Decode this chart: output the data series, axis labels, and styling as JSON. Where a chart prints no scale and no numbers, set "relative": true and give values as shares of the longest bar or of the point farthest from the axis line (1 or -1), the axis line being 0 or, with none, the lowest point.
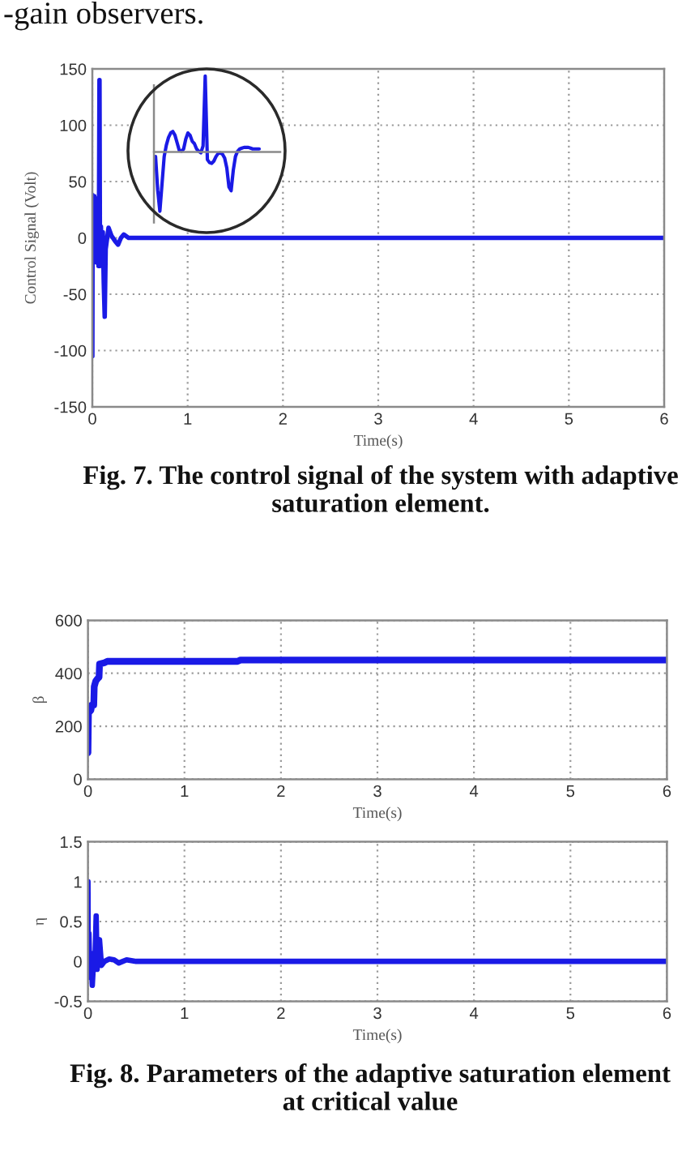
{
  "chart_data": [
    {
      "type": "line",
      "xlabel": "Time(s)",
      "ylabel": "Control Signal (Volt)",
      "annotations": [
        "-gain observers.",
        "Fig. 7. The control signal of the system with adaptive saturation element."
      ],
      "x": [
        0,
        0.003,
        0.01,
        0.015,
        0.02,
        0.025,
        0.03,
        0.035,
        0.04,
        0.045,
        0.05,
        0.055,
        0.06,
        0.065,
        0.07,
        0.075,
        0.08,
        0.09,
        0.1,
        0.11,
        0.12,
        0.13,
        0.14,
        0.17,
        0.2,
        0.24,
        0.27,
        0.3,
        0.33,
        0.38,
        0.45,
        6
      ],
      "series": [
        {
          "color": "#1a1ae6",
          "values": [
            -105,
            38,
            35,
            -10,
            37,
            -20,
            30,
            -15,
            35,
            -22,
            32,
            -20,
            30,
            -25,
            20,
            140,
            -25,
            10,
            -20,
            5,
            -40,
            -70,
            -10,
            9,
            2,
            -3,
            -6,
            0,
            3,
            0,
            0,
            0
          ]
        }
      ],
      "xlim": [
        0,
        6
      ],
      "ylim": [
        -150,
        150
      ],
      "xticks": [
        0,
        1,
        2,
        3,
        4,
        5,
        6
      ],
      "yticks": [
        -150,
        -100,
        -50,
        0,
        50,
        100,
        150
      ],
      "grid": true
    },
    {
      "type": "line",
      "relative": true,
      "categories": [
        null,
        null,
        null,
        null,
        null,
        null,
        null,
        null,
        null,
        null,
        null,
        null,
        null,
        null,
        null,
        null,
        null,
        null,
        null,
        null,
        null,
        null,
        null,
        null,
        null,
        null,
        null,
        null,
        null,
        null,
        null,
        null,
        null,
        null,
        null,
        null,
        null,
        null,
        null,
        null,
        null,
        null,
        null,
        null,
        null,
        null,
        null,
        null,
        null
      ],
      "series": [
        {
          "color": "#1a1ae6",
          "values": [
            -0.06,
            -0.5,
            -0.78,
            -0.42,
            -0.06,
            0.09,
            0.19,
            0.25,
            0.27,
            0.22,
            0.12,
            0.02,
            0.01,
            0.04,
            0.17,
            0.25,
            0.22,
            0.14,
            0.11,
            0.04,
            0.01,
            -0.01,
            0.08,
            1,
            -0.1,
            -0.14,
            -0.15,
            -0.12,
            -0.06,
            -0.02,
            -0.01,
            -0.03,
            -0.08,
            -0.21,
            -0.46,
            -0.51,
            -0.24,
            -0.06,
            0.01,
            0.04,
            0.05,
            0.06,
            0.06,
            0.06,
            0.05,
            0.04,
            0.04,
            0.04,
            0.04
          ]
        }
      ]
    },
    {
      "type": "line",
      "xlabel": "Time(s)",
      "ylabel": "β",
      "x": [
        0,
        0.005,
        0.03,
        0.04,
        0.06,
        0.065,
        0.08,
        0.1,
        0.115,
        0.12,
        0.17,
        0.2,
        1.55,
        1.58,
        6
      ],
      "series": [
        {
          "color": "#1a1ae6",
          "values": [
            100,
            250,
            260,
            280,
            280,
            350,
            370,
            380,
            385,
            435,
            440,
            445,
            445,
            450,
            450
          ]
        }
      ],
      "xlim": [
        0,
        6
      ],
      "ylim": [
        0,
        600
      ],
      "xticks": [
        0,
        1,
        2,
        3,
        4,
        5,
        6
      ],
      "yticks": [
        0,
        200,
        400,
        600
      ],
      "grid": true
    },
    {
      "type": "line",
      "xlabel": "Time(s)",
      "ylabel": "η",
      "annotations": [
        "Fig. 8. Parameters of the adaptive saturation element at critical value"
      ],
      "x": [
        0,
        0.003,
        0.01,
        0.02,
        0.03,
        0.045,
        0.06,
        0.07,
        0.085,
        0.095,
        0.105,
        0.12,
        0.14,
        0.17,
        0.22,
        0.27,
        0.32,
        0.4,
        0.5,
        6
      ],
      "series": [
        {
          "color": "#1a1ae6",
          "values": [
            1.0,
            -0.15,
            0.35,
            -0.2,
            0.1,
            -0.3,
            0.05,
            -0.1,
            0.57,
            -0.1,
            0.1,
            0.27,
            -0.05,
            0,
            0.03,
            0.02,
            -0.02,
            0.02,
            0,
            0
          ]
        }
      ],
      "xlim": [
        0,
        6
      ],
      "ylim": [
        -0.5,
        1.5
      ],
      "xticks": [
        0,
        1,
        2,
        3,
        4,
        5,
        6
      ],
      "yticks": [
        -0.5,
        0,
        0.5,
        1,
        1.5
      ],
      "grid": true
    }
  ]
}
